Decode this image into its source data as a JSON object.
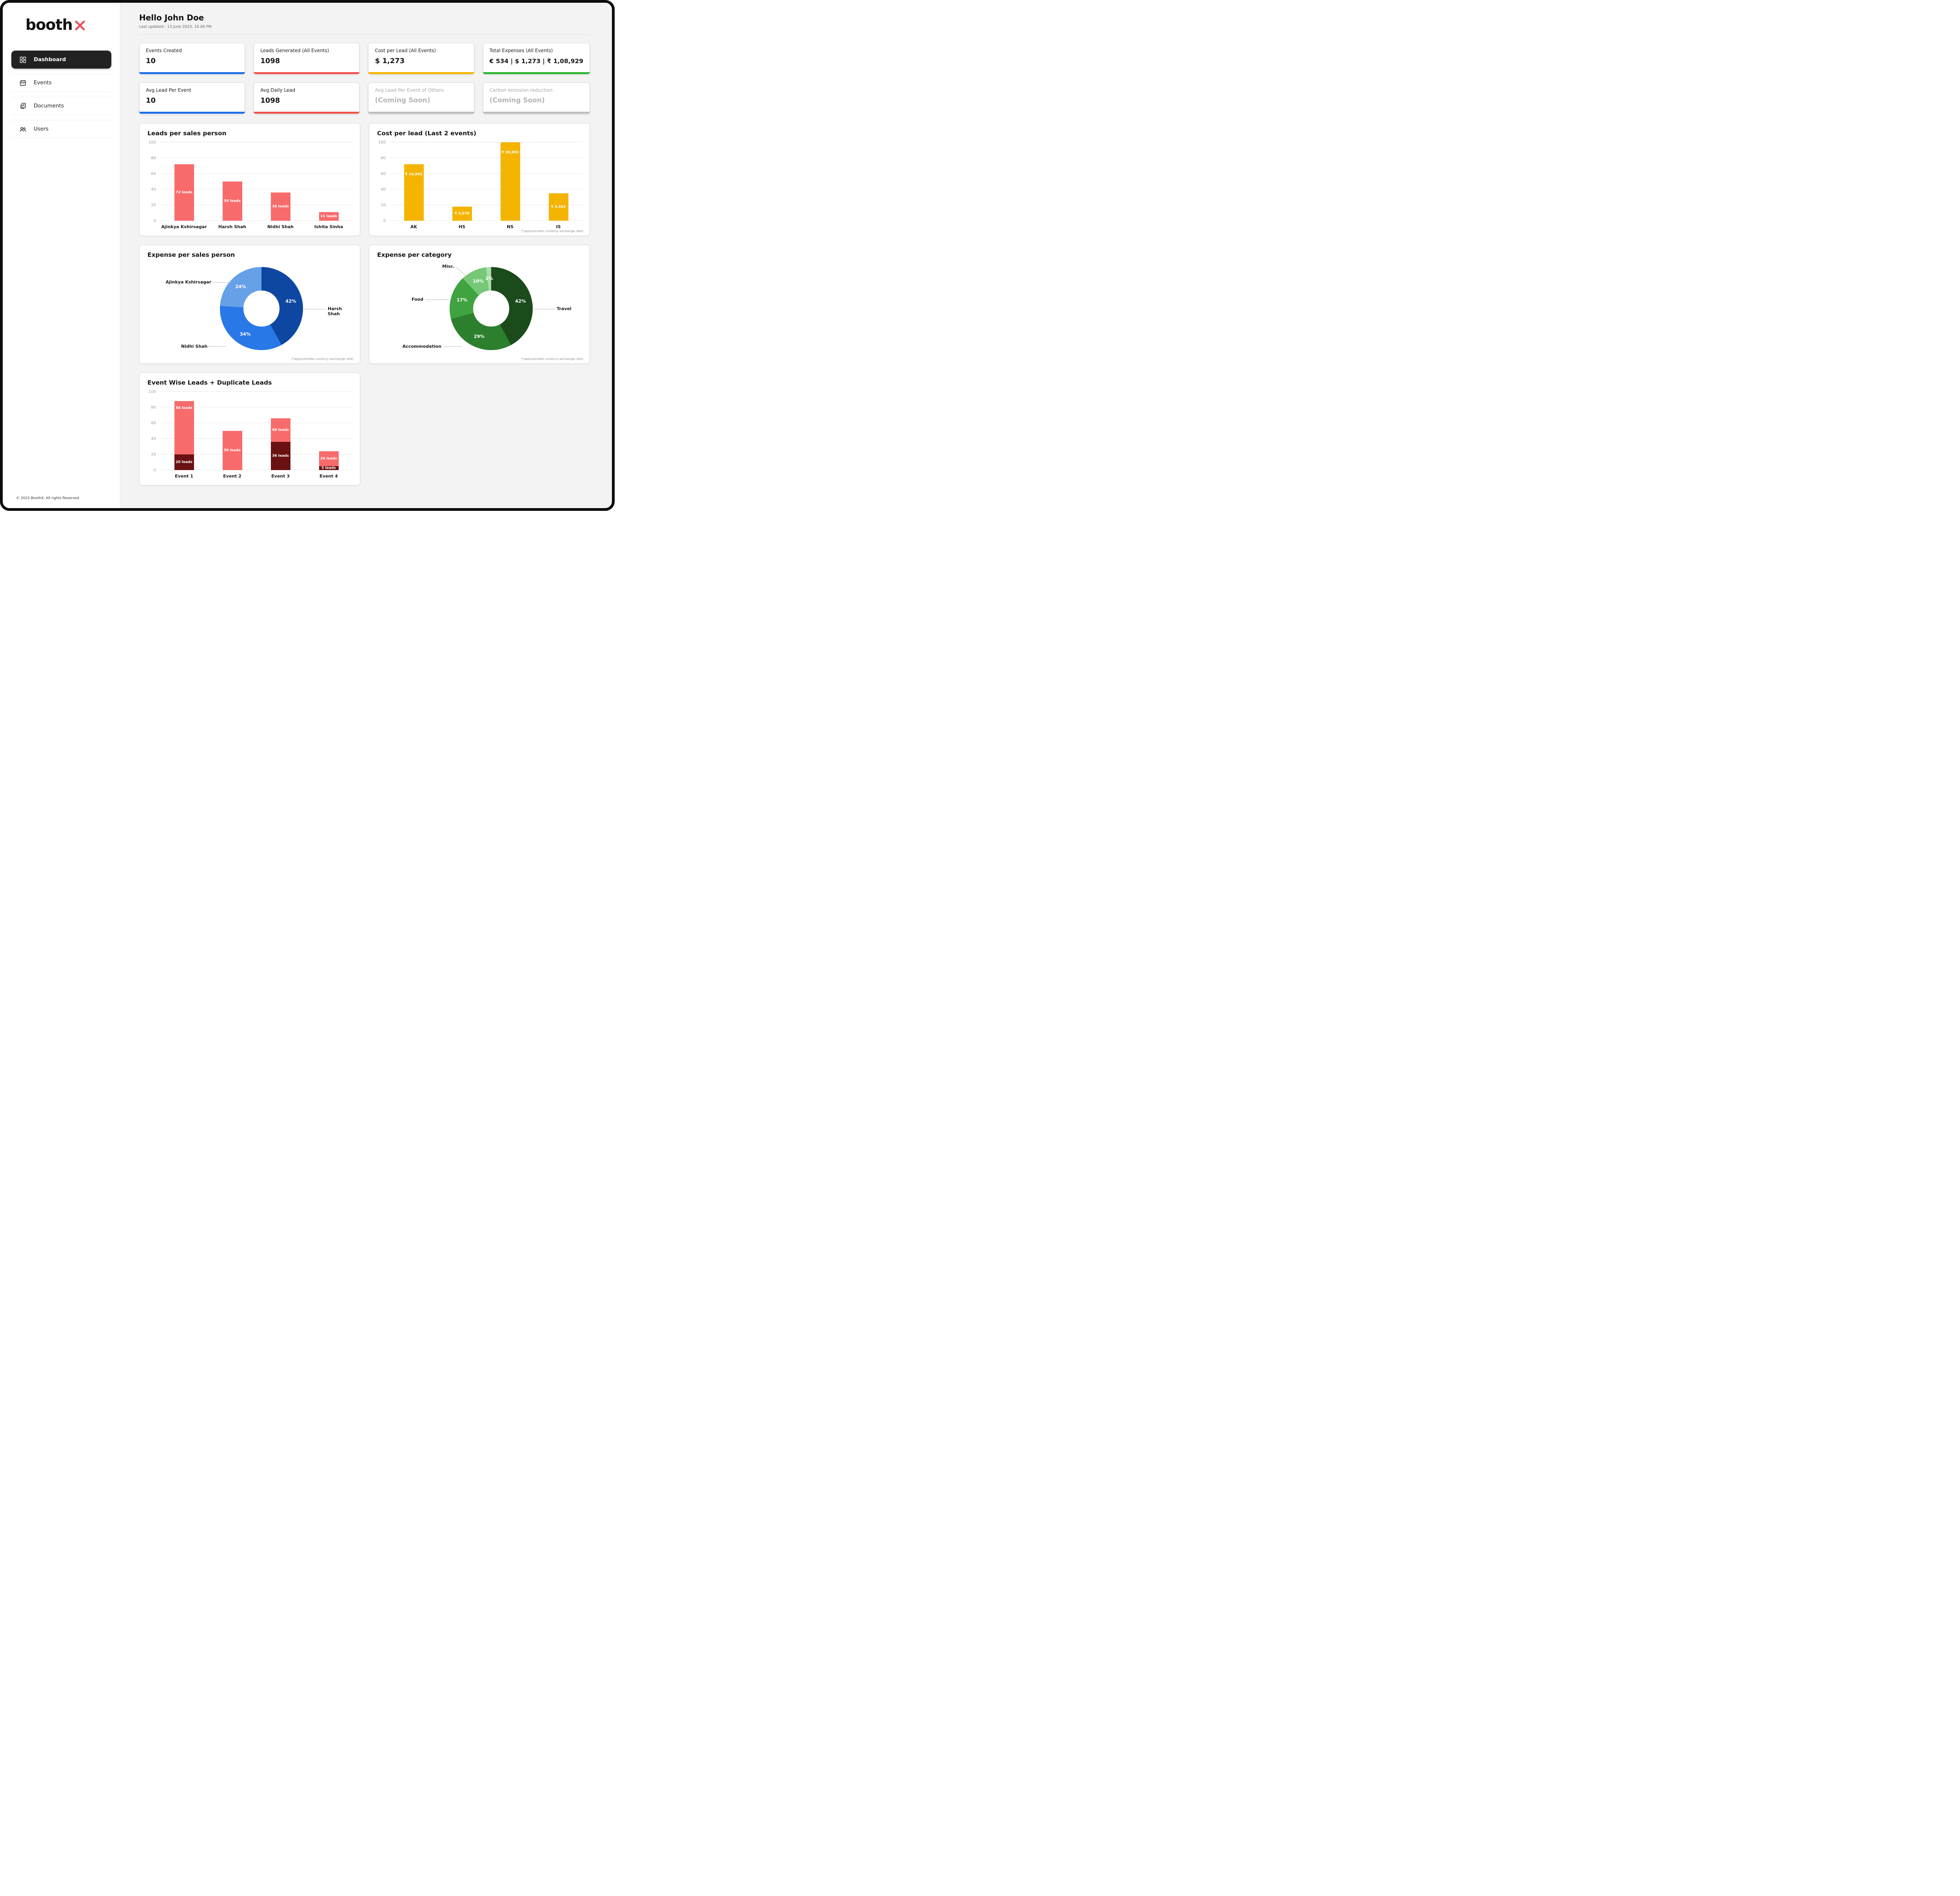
{
  "brand": {
    "name": "booth",
    "x": "X",
    "x_color": "#f0485c"
  },
  "sidebar": {
    "items": [
      {
        "label": "Dashboard",
        "icon": "dashboard-icon",
        "active": true
      },
      {
        "label": "Events",
        "icon": "calendar-icon",
        "active": false
      },
      {
        "label": "Documents",
        "icon": "documents-icon",
        "active": false
      },
      {
        "label": "Users",
        "icon": "users-icon",
        "active": false
      }
    ],
    "footer": "© 2023 BoothX, All rights Reserved"
  },
  "header": {
    "greeting": "Hello John Doe",
    "last_updated": "Last updated : 13 June 2023, 10.06 PM"
  },
  "stat_cards": [
    {
      "label": "Events Created",
      "value": "10",
      "accent": "#1d6fe8",
      "muted": false
    },
    {
      "label": "Leads Generated (All Events)",
      "value": "1098",
      "accent": "#f2544c",
      "muted": false
    },
    {
      "label": "Cost per Lead (All Events)",
      "value": "$ 1,273",
      "accent": "#f4b400",
      "muted": false
    },
    {
      "label": "Total Expenses (All Events)",
      "value": "€ 534  |  $ 1,273  |  ₹ 1,08,929",
      "accent": "#2eb52e",
      "muted": false
    },
    {
      "label": "Avg Lead Per Event",
      "value": "10",
      "accent": "#1d6fe8",
      "muted": false
    },
    {
      "label": "Avg Daily Lead",
      "value": "1098",
      "accent": "#f2544c",
      "muted": false
    },
    {
      "label": "Avg Lead Per Event of Others",
      "value": "(Coming Soon)",
      "accent": "#bdbdbd",
      "muted": true
    },
    {
      "label": "Carbon emission reduction",
      "value": "(Coming Soon)",
      "accent": "#bdbdbd",
      "muted": true
    }
  ],
  "chart_data": [
    {
      "id": "leads-per-salesperson",
      "type": "bar",
      "title": "Leads per sales person",
      "categories": [
        "Ajinkya Kshirsagar",
        "Harsh Shah",
        "Nidhi Shah",
        "Ishita Sinha"
      ],
      "values": [
        72,
        50,
        36,
        11
      ],
      "bar_labels": [
        "72 leads",
        "50 leads",
        "36 leads",
        "11 leads"
      ],
      "bar_color": "#f76b6b",
      "ylim": [
        0,
        100
      ],
      "yticks": [
        0,
        20,
        40,
        60,
        80,
        100
      ],
      "grid": true,
      "legend": "none"
    },
    {
      "id": "cost-per-lead",
      "type": "bar",
      "title": "Cost per lead (Last 2 events)",
      "categories": [
        "AK",
        "HS",
        "NS",
        "IS"
      ],
      "values": [
        10892,
        3678,
        30892,
        5592
      ],
      "bar_heights": [
        72,
        18,
        100,
        35
      ],
      "bar_labels": [
        "₹ 10,892",
        "₹ 3,678",
        "₹ 30,892",
        "₹ 5,592"
      ],
      "bar_color": "#f4b400",
      "ylim": [
        0,
        100
      ],
      "yticks": [
        0,
        20,
        40,
        60,
        80,
        100
      ],
      "grid": true,
      "footnote": "(*approximate currency exchange rate)"
    },
    {
      "id": "expense-per-salesperson",
      "type": "pie",
      "title": "Expense per sales person",
      "labels": [
        "Harsh Shah",
        "Nidhi Shah",
        "Ajinkya Kshirsagar"
      ],
      "values": [
        42,
        34,
        24
      ],
      "percent_labels": [
        "42%",
        "34%",
        "24%"
      ],
      "colors": [
        "#0d47a1",
        "#2878e8",
        "#66a1e8"
      ],
      "footnote": "(*approximate currency exchange rate)"
    },
    {
      "id": "expense-per-category",
      "type": "pie",
      "title": "Expense per category",
      "labels": [
        "Travel",
        "Accommodation",
        "Food",
        "Misc.",
        ""
      ],
      "values": [
        42,
        29,
        17,
        10,
        2
      ],
      "percent_labels": [
        "42%",
        "29%",
        "17%",
        "10%",
        "2%"
      ],
      "colors": [
        "#1b4a1b",
        "#2c7f2c",
        "#3fa33f",
        "#76c876",
        "#abdcab"
      ],
      "footnote": "(*approximate currency exchange rate)"
    },
    {
      "id": "event-wise-leads",
      "type": "bar",
      "stacked": true,
      "title": "Event Wise Leads + Duplicate Leads",
      "categories": [
        "Event 1",
        "Event 2",
        "Event 3",
        "Event 4"
      ],
      "series": [
        {
          "name": "Leads",
          "values": [
            88,
            50,
            66,
            24
          ],
          "labels": [
            "88 leads",
            "50 leads",
            "66 leads",
            "24 leads"
          ],
          "color": "#f76b6b"
        },
        {
          "name": "Duplicate Leads",
          "values": [
            20,
            0,
            36,
            5
          ],
          "labels": [
            "20 leads",
            "",
            "36 leads",
            "5 leads"
          ],
          "color": "#6b1111"
        }
      ],
      "ylim": [
        0,
        100
      ],
      "yticks": [
        0,
        20,
        40,
        60,
        80,
        100
      ],
      "grid": true
    }
  ]
}
